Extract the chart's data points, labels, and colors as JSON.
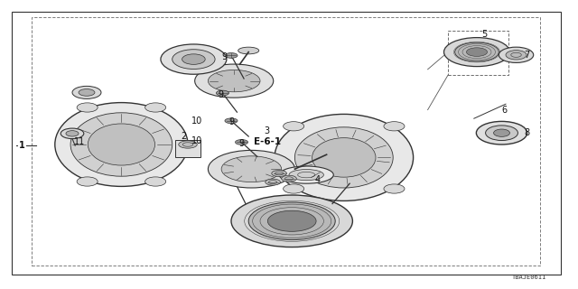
{
  "bg_color": "#ffffff",
  "border_color": "#555555",
  "dashed_border_color": "#888888",
  "diagram_id": "TBAJE0611",
  "label_fontsize": 7,
  "diagram_code": "TBAJE0611",
  "outer_border": [
    0.02,
    0.04,
    0.97,
    0.95
  ],
  "inner_border": [
    0.055,
    0.06,
    0.935,
    0.92
  ],
  "color": "#333333",
  "bg": "#ffffff"
}
